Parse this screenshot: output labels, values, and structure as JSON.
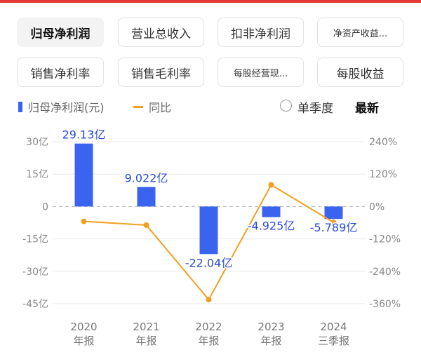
{
  "tabs": [
    "归母净利润",
    "营业总收入",
    "扣非净利润",
    "净资产收益...",
    "销售净利率",
    "销售毛利率",
    "每股经营现...",
    "每股收益"
  ],
  "controls": {
    "single_quarter": "单季度",
    "latest": "最新"
  },
  "chart_data": {
    "type": "bar",
    "categories": [
      [
        "2020",
        "年报"
      ],
      [
        "2021",
        "年报"
      ],
      [
        "2022",
        "年报"
      ],
      [
        "2023",
        "年报"
      ],
      [
        "2024",
        "三季报"
      ]
    ],
    "series": [
      {
        "name": "归母净利润(元)",
        "kind": "bar",
        "values": [
          29.13,
          9.022,
          -22.04,
          -4.925,
          -5.789
        ],
        "labels": [
          "29.13亿",
          "9.022亿",
          "-22.04亿",
          "-4.925亿",
          "-5.789亿"
        ],
        "color": "#3a64f0"
      },
      {
        "name": "同比",
        "kind": "line",
        "values": [
          -55,
          -69,
          -345,
          80,
          -59
        ],
        "color": "#f0a020"
      }
    ],
    "y_left": {
      "ticks": [
        30,
        15,
        0,
        -15,
        -30,
        -45
      ],
      "tick_labels": [
        "30亿",
        "15亿",
        "0",
        "-15亿",
        "-30亿",
        "-45亿"
      ],
      "range": [
        -45,
        30
      ]
    },
    "y_right": {
      "ticks": [
        240,
        120,
        0,
        -120,
        -240,
        -360
      ],
      "tick_labels": [
        "240%",
        "120%",
        "0%",
        "-120%",
        "-240%",
        "-360%"
      ],
      "range": [
        -360,
        240
      ]
    },
    "grid": true,
    "legend": "top-left"
  }
}
